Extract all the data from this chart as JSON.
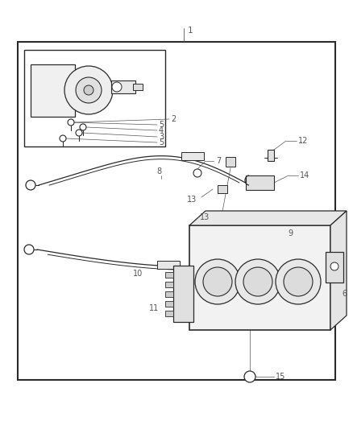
{
  "bg_color": "#ffffff",
  "border_color": "#1a1a1a",
  "lc": "#2a2a2a",
  "labelc": "#555555",
  "fig_width": 4.38,
  "fig_height": 5.33,
  "dpi": 100
}
